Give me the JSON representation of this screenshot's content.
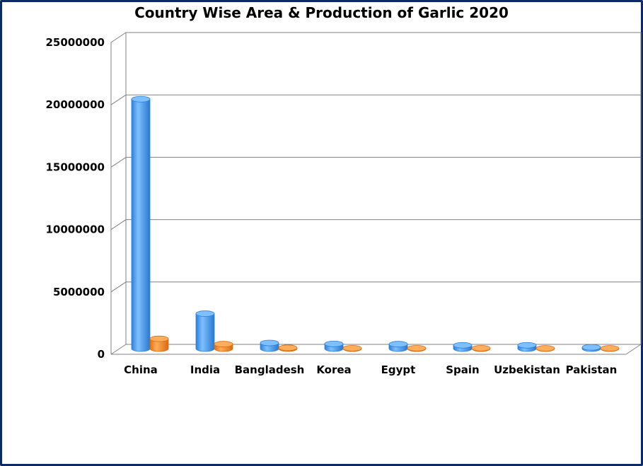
{
  "chart_data": {
    "type": "bar",
    "title": "Country Wise Area & Production of Garlic 2020",
    "xlabel": "",
    "ylabel": "",
    "ylim": [
      0,
      25000000
    ],
    "yticks": [
      "0",
      "5000000",
      "10000000",
      "15000000",
      "20000000",
      "25000000"
    ],
    "categories": [
      "China",
      "India",
      "Bangladesh",
      "Korea",
      "Egypt",
      "Spain",
      "Uzbekistan",
      "Pakistan"
    ],
    "series": [
      {
        "values": [
          20700000,
          2900000,
          470000,
          390000,
          370000,
          280000,
          280000,
          110000
        ]
      },
      {
        "values": [
          810000,
          370000,
          70000,
          30000,
          30000,
          30000,
          20000,
          20000
        ]
      }
    ],
    "grid": true,
    "legend": "none",
    "colors": {
      "series1": "#4f9ff0",
      "series2": "#f58a2b",
      "grid": "#808080",
      "frame": "#0b2a66"
    }
  }
}
